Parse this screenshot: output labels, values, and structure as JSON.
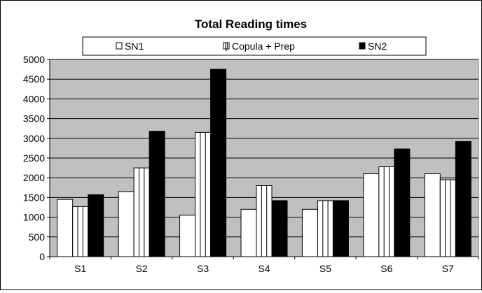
{
  "chart_data": {
    "type": "bar",
    "title": "Total Reading times",
    "categories": [
      "S1",
      "S2",
      "S3",
      "S4",
      "S5",
      "S6",
      "S7"
    ],
    "series": [
      {
        "name": "SN1",
        "values": [
          1450,
          1650,
          1050,
          1200,
          1200,
          2100,
          2100
        ],
        "color": "#ffffff",
        "pattern": "plain"
      },
      {
        "name": "Copula + Prep",
        "values": [
          1270,
          2250,
          3150,
          1800,
          1420,
          2280,
          1950
        ],
        "color": "#ffffff",
        "pattern": "vertical-stripes"
      },
      {
        "name": "SN2",
        "values": [
          1570,
          3180,
          4750,
          1420,
          1420,
          2730,
          2920
        ],
        "color": "#000000",
        "pattern": "solid"
      }
    ],
    "ylim": [
      0,
      5000
    ],
    "yticks": [
      "0",
      "500",
      "1000",
      "1500",
      "2000",
      "2500",
      "3000",
      "3500",
      "4000",
      "4500",
      "5000"
    ],
    "grid": true,
    "legend_position": "top",
    "plot_background": "#c0c0c0"
  }
}
